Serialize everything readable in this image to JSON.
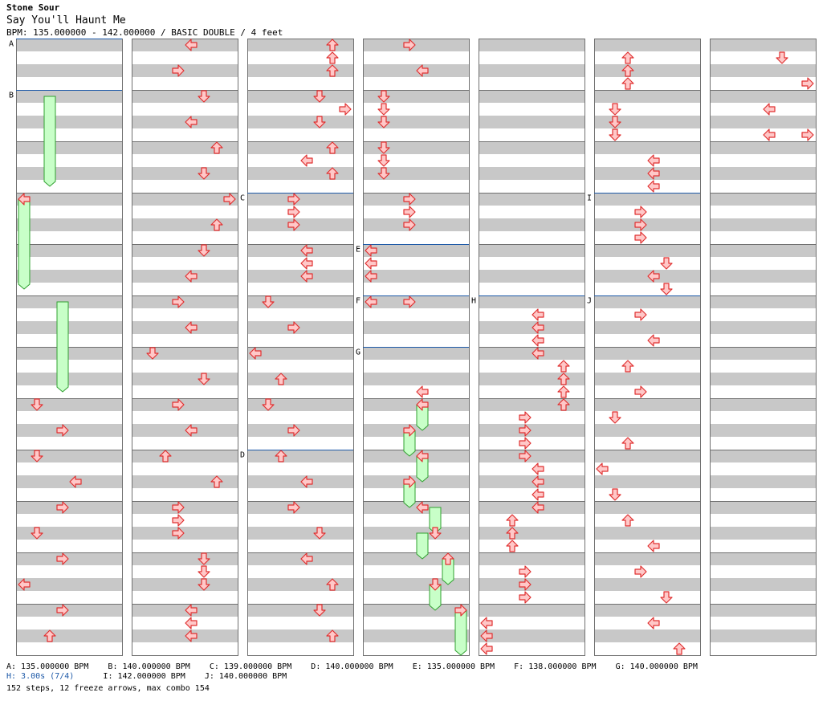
{
  "header": {
    "artist": "Stone Sour",
    "title": "Say You'll Haunt Me",
    "meta": "BPM: 135.000000 - 142.000000 / BASIC DOUBLE / 4 feet"
  },
  "footer": {
    "line1": "A: 135.000000 BPM    B: 140.000000 BPM    C: 139.000000 BPM    D: 140.000000 BPM    E: 135.000000 BPM    F: 138.000000 BPM    G: 140.000000 BPM",
    "line2_h": "H: 3.00s (7/4)",
    "line2_rest": "      I: 142.000000 BPM    J: 140.000000 BPM",
    "line3": "152 steps, 12 freeze arrows, max combo 154"
  },
  "colors": {
    "stripe": "#c8c8c8",
    "border": "#707070",
    "marker_line": "#1e5aa8",
    "arrow_fill": "#ffc8c8",
    "arrow_stroke": "#e03030",
    "freeze_fill": "#c8ffc8",
    "freeze_stroke": "#30a030"
  },
  "chart_data": {
    "type": "stepchart",
    "columns": 7,
    "measures_per_column": 12,
    "lanes": 8,
    "markers": [
      {
        "label": "A",
        "col": 0,
        "beat": 0
      },
      {
        "label": "B",
        "col": 0,
        "beat": 4
      },
      {
        "label": "C",
        "col": 2,
        "beat": 12
      },
      {
        "label": "D",
        "col": 2,
        "beat": 32
      },
      {
        "label": "E",
        "col": 3,
        "beat": 16
      },
      {
        "label": "F",
        "col": 3,
        "beat": 20
      },
      {
        "label": "G",
        "col": 3,
        "beat": 24
      },
      {
        "label": "H",
        "col": 4,
        "beat": 20
      },
      {
        "label": "I",
        "col": 5,
        "beat": 12
      },
      {
        "label": "J",
        "col": 5,
        "beat": 20
      }
    ],
    "notes": [
      {
        "col": 0,
        "lane": 0,
        "beat": 12
      },
      {
        "col": 0,
        "lane": 1,
        "beat": 28
      },
      {
        "col": 0,
        "lane": 3,
        "beat": 30
      },
      {
        "col": 0,
        "lane": 1,
        "beat": 32
      },
      {
        "col": 0,
        "lane": 4,
        "beat": 34
      },
      {
        "col": 0,
        "lane": 3,
        "beat": 36
      },
      {
        "col": 0,
        "lane": 1,
        "beat": 38
      },
      {
        "col": 0,
        "lane": 3,
        "beat": 40
      },
      {
        "col": 0,
        "lane": 0,
        "beat": 42
      },
      {
        "col": 0,
        "lane": 3,
        "beat": 44
      },
      {
        "col": 0,
        "lane": 2,
        "beat": 46
      },
      {
        "col": 1,
        "lane": 4,
        "beat": 0
      },
      {
        "col": 1,
        "lane": 3,
        "beat": 2
      },
      {
        "col": 1,
        "lane": 5,
        "beat": 4
      },
      {
        "col": 1,
        "lane": 4,
        "beat": 6
      },
      {
        "col": 1,
        "lane": 6,
        "beat": 8
      },
      {
        "col": 1,
        "lane": 5,
        "beat": 10
      },
      {
        "col": 1,
        "lane": 7,
        "beat": 12
      },
      {
        "col": 1,
        "lane": 6,
        "beat": 14
      },
      {
        "col": 1,
        "lane": 5,
        "beat": 16
      },
      {
        "col": 1,
        "lane": 4,
        "beat": 18
      },
      {
        "col": 1,
        "lane": 3,
        "beat": 20
      },
      {
        "col": 1,
        "lane": 4,
        "beat": 22
      },
      {
        "col": 1,
        "lane": 1,
        "beat": 24
      },
      {
        "col": 1,
        "lane": 5,
        "beat": 26
      },
      {
        "col": 1,
        "lane": 3,
        "beat": 28
      },
      {
        "col": 1,
        "lane": 4,
        "beat": 30
      },
      {
        "col": 1,
        "lane": 2,
        "beat": 32
      },
      {
        "col": 1,
        "lane": 6,
        "beat": 34
      },
      {
        "col": 1,
        "lane": 3,
        "beat": 36
      },
      {
        "col": 1,
        "lane": 3,
        "beat": 37
      },
      {
        "col": 1,
        "lane": 3,
        "beat": 38
      },
      {
        "col": 1,
        "lane": 5,
        "beat": 40
      },
      {
        "col": 1,
        "lane": 5,
        "beat": 41
      },
      {
        "col": 1,
        "lane": 5,
        "beat": 42
      },
      {
        "col": 1,
        "lane": 4,
        "beat": 44
      },
      {
        "col": 1,
        "lane": 4,
        "beat": 45
      },
      {
        "col": 1,
        "lane": 4,
        "beat": 46
      },
      {
        "col": 2,
        "lane": 6,
        "beat": 0
      },
      {
        "col": 2,
        "lane": 6,
        "beat": 1
      },
      {
        "col": 2,
        "lane": 6,
        "beat": 2
      },
      {
        "col": 2,
        "lane": 5,
        "beat": 4
      },
      {
        "col": 2,
        "lane": 7,
        "beat": 5
      },
      {
        "col": 2,
        "lane": 5,
        "beat": 6
      },
      {
        "col": 2,
        "lane": 6,
        "beat": 8
      },
      {
        "col": 2,
        "lane": 4,
        "beat": 9
      },
      {
        "col": 2,
        "lane": 6,
        "beat": 10
      },
      {
        "col": 2,
        "lane": 3,
        "beat": 12
      },
      {
        "col": 2,
        "lane": 3,
        "beat": 13
      },
      {
        "col": 2,
        "lane": 3,
        "beat": 14
      },
      {
        "col": 2,
        "lane": 4,
        "beat": 16
      },
      {
        "col": 2,
        "lane": 4,
        "beat": 17
      },
      {
        "col": 2,
        "lane": 4,
        "beat": 18
      },
      {
        "col": 2,
        "lane": 1,
        "beat": 20
      },
      {
        "col": 2,
        "lane": 3,
        "beat": 22
      },
      {
        "col": 2,
        "lane": 0,
        "beat": 24
      },
      {
        "col": 2,
        "lane": 2,
        "beat": 26
      },
      {
        "col": 2,
        "lane": 1,
        "beat": 28
      },
      {
        "col": 2,
        "lane": 3,
        "beat": 30
      },
      {
        "col": 2,
        "lane": 2,
        "beat": 32
      },
      {
        "col": 2,
        "lane": 4,
        "beat": 34
      },
      {
        "col": 2,
        "lane": 3,
        "beat": 36
      },
      {
        "col": 2,
        "lane": 5,
        "beat": 38
      },
      {
        "col": 2,
        "lane": 4,
        "beat": 40
      },
      {
        "col": 2,
        "lane": 6,
        "beat": 42
      },
      {
        "col": 2,
        "lane": 5,
        "beat": 44
      },
      {
        "col": 2,
        "lane": 6,
        "beat": 46
      },
      {
        "col": 3,
        "lane": 3,
        "beat": 0
      },
      {
        "col": 3,
        "lane": 4,
        "beat": 2
      },
      {
        "col": 3,
        "lane": 1,
        "beat": 4
      },
      {
        "col": 3,
        "lane": 1,
        "beat": 5
      },
      {
        "col": 3,
        "lane": 1,
        "beat": 6
      },
      {
        "col": 3,
        "lane": 1,
        "beat": 8
      },
      {
        "col": 3,
        "lane": 1,
        "beat": 9
      },
      {
        "col": 3,
        "lane": 1,
        "beat": 10
      },
      {
        "col": 3,
        "lane": 3,
        "beat": 12
      },
      {
        "col": 3,
        "lane": 3,
        "beat": 13
      },
      {
        "col": 3,
        "lane": 3,
        "beat": 14
      },
      {
        "col": 3,
        "lane": 0,
        "beat": 16
      },
      {
        "col": 3,
        "lane": 0,
        "beat": 17
      },
      {
        "col": 3,
        "lane": 0,
        "beat": 18
      },
      {
        "col": 3,
        "lane": 0,
        "beat": 20
      },
      {
        "col": 3,
        "lane": 3,
        "beat": 20
      },
      {
        "col": 3,
        "lane": 4,
        "beat": 27
      },
      {
        "col": 3,
        "lane": 4,
        "beat": 28
      },
      {
        "col": 3,
        "lane": 3,
        "beat": 30
      },
      {
        "col": 3,
        "lane": 3,
        "beat": 34
      },
      {
        "col": 3,
        "lane": 4,
        "beat": 32
      },
      {
        "col": 3,
        "lane": 4,
        "beat": 36
      },
      {
        "col": 3,
        "lane": 5,
        "beat": 38
      },
      {
        "col": 3,
        "lane": 6,
        "beat": 40
      },
      {
        "col": 3,
        "lane": 5,
        "beat": 42
      },
      {
        "col": 3,
        "lane": 7,
        "beat": 44
      },
      {
        "col": 4,
        "lane": 0,
        "beat": 45
      },
      {
        "col": 4,
        "lane": 0,
        "beat": 46
      },
      {
        "col": 4,
        "lane": 0,
        "beat": 47
      },
      {
        "col": 4,
        "lane": 4,
        "beat": 21
      },
      {
        "col": 4,
        "lane": 4,
        "beat": 22
      },
      {
        "col": 4,
        "lane": 4,
        "beat": 23
      },
      {
        "col": 4,
        "lane": 4,
        "beat": 24
      },
      {
        "col": 4,
        "lane": 6,
        "beat": 25
      },
      {
        "col": 4,
        "lane": 6,
        "beat": 26
      },
      {
        "col": 4,
        "lane": 6,
        "beat": 27
      },
      {
        "col": 4,
        "lane": 6,
        "beat": 28
      },
      {
        "col": 4,
        "lane": 3,
        "beat": 29
      },
      {
        "col": 4,
        "lane": 3,
        "beat": 30
      },
      {
        "col": 4,
        "lane": 3,
        "beat": 31
      },
      {
        "col": 4,
        "lane": 3,
        "beat": 32
      },
      {
        "col": 4,
        "lane": 4,
        "beat": 33
      },
      {
        "col": 4,
        "lane": 4,
        "beat": 34
      },
      {
        "col": 4,
        "lane": 4,
        "beat": 35
      },
      {
        "col": 4,
        "lane": 4,
        "beat": 36
      },
      {
        "col": 4,
        "lane": 2,
        "beat": 37
      },
      {
        "col": 4,
        "lane": 2,
        "beat": 38
      },
      {
        "col": 4,
        "lane": 2,
        "beat": 39
      },
      {
        "col": 4,
        "lane": 3,
        "beat": 41
      },
      {
        "col": 4,
        "lane": 3,
        "beat": 42
      },
      {
        "col": 4,
        "lane": 3,
        "beat": 43
      },
      {
        "col": 5,
        "lane": 2,
        "beat": 1
      },
      {
        "col": 5,
        "lane": 2,
        "beat": 2
      },
      {
        "col": 5,
        "lane": 2,
        "beat": 3
      },
      {
        "col": 5,
        "lane": 1,
        "beat": 5
      },
      {
        "col": 5,
        "lane": 1,
        "beat": 6
      },
      {
        "col": 5,
        "lane": 1,
        "beat": 7
      },
      {
        "col": 5,
        "lane": 4,
        "beat": 9
      },
      {
        "col": 5,
        "lane": 4,
        "beat": 10
      },
      {
        "col": 5,
        "lane": 4,
        "beat": 11
      },
      {
        "col": 5,
        "lane": 3,
        "beat": 13
      },
      {
        "col": 5,
        "lane": 3,
        "beat": 14
      },
      {
        "col": 5,
        "lane": 3,
        "beat": 15
      },
      {
        "col": 5,
        "lane": 5,
        "beat": 17
      },
      {
        "col": 5,
        "lane": 4,
        "beat": 18
      },
      {
        "col": 5,
        "lane": 5,
        "beat": 19
      },
      {
        "col": 5,
        "lane": 3,
        "beat": 21
      },
      {
        "col": 5,
        "lane": 4,
        "beat": 23
      },
      {
        "col": 5,
        "lane": 2,
        "beat": 25
      },
      {
        "col": 5,
        "lane": 3,
        "beat": 27
      },
      {
        "col": 5,
        "lane": 1,
        "beat": 29
      },
      {
        "col": 5,
        "lane": 2,
        "beat": 31
      },
      {
        "col": 5,
        "lane": 0,
        "beat": 33
      },
      {
        "col": 5,
        "lane": 1,
        "beat": 35
      },
      {
        "col": 5,
        "lane": 2,
        "beat": 37
      },
      {
        "col": 5,
        "lane": 4,
        "beat": 39
      },
      {
        "col": 5,
        "lane": 3,
        "beat": 41
      },
      {
        "col": 5,
        "lane": 5,
        "beat": 43
      },
      {
        "col": 5,
        "lane": 4,
        "beat": 45
      },
      {
        "col": 5,
        "lane": 6,
        "beat": 47
      },
      {
        "col": 6,
        "lane": 5,
        "beat": 1
      },
      {
        "col": 6,
        "lane": 7,
        "beat": 3
      },
      {
        "col": 6,
        "lane": 4,
        "beat": 5
      },
      {
        "col": 6,
        "lane": 4,
        "beat": 7
      },
      {
        "col": 6,
        "lane": 7,
        "beat": 7
      }
    ],
    "freezes": [
      {
        "col": 0,
        "lane": 2,
        "start": 4,
        "end": 11.5
      },
      {
        "col": 0,
        "lane": 0,
        "start": 12,
        "end": 19.5
      },
      {
        "col": 0,
        "lane": 3,
        "start": 20,
        "end": 27.5
      },
      {
        "col": 3,
        "lane": 4,
        "start": 28,
        "end": 30.5
      },
      {
        "col": 3,
        "lane": 3,
        "start": 30,
        "end": 32.5
      },
      {
        "col": 3,
        "lane": 4,
        "start": 32,
        "end": 34.5
      },
      {
        "col": 3,
        "lane": 3,
        "start": 34,
        "end": 36.5
      },
      {
        "col": 3,
        "lane": 5,
        "start": 36,
        "end": 38.5
      },
      {
        "col": 3,
        "lane": 4,
        "start": 38,
        "end": 40.5
      },
      {
        "col": 3,
        "lane": 6,
        "start": 40,
        "end": 42.5
      },
      {
        "col": 3,
        "lane": 5,
        "start": 42,
        "end": 44.5
      },
      {
        "col": 3,
        "lane": 7,
        "start": 44,
        "end": 48
      }
    ]
  }
}
